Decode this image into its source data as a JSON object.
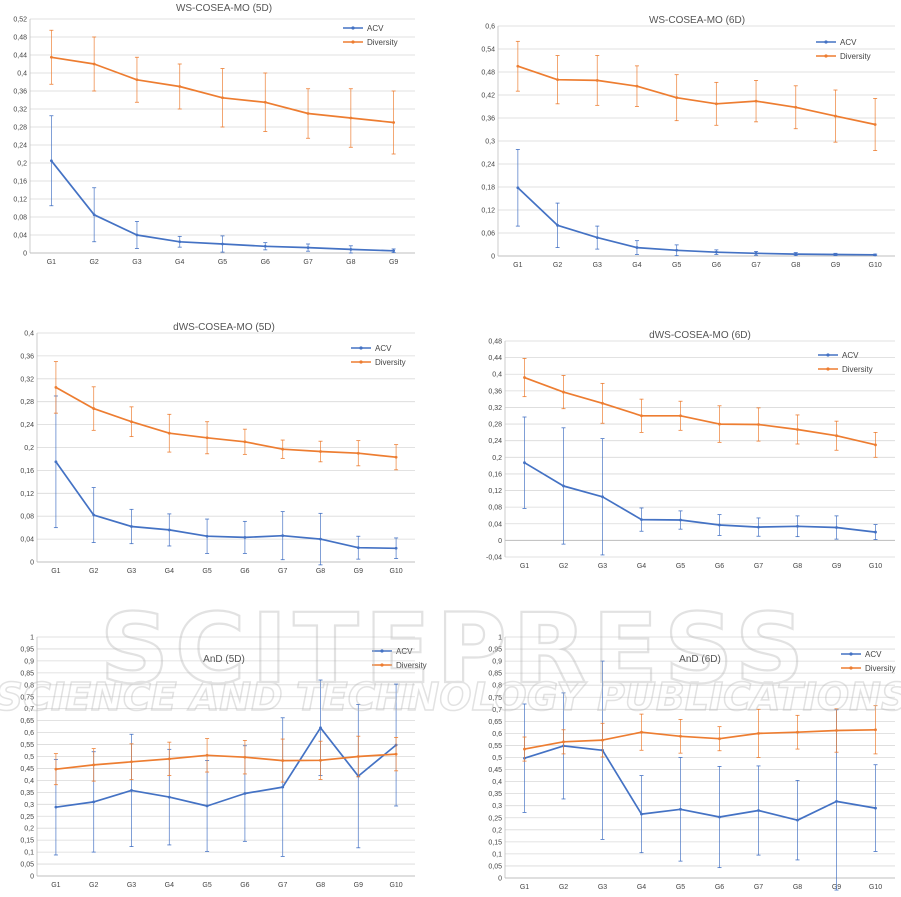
{
  "colors": {
    "acv": "#4472C4",
    "diversity": "#ED7D31",
    "grid": "#D9D9D9",
    "watermark": "#B4B4B4"
  },
  "watermark": {
    "line1": "SCITEPRESS",
    "line2": "SCIENCE AND TECHNOLOGY PUBLICATIONS"
  },
  "chart_data": [
    {
      "type": "line",
      "title": "WS-COSEA-MO (5D)",
      "categories": [
        "G1",
        "G2",
        "G3",
        "G4",
        "G5",
        "G6",
        "G7",
        "G8",
        "G9"
      ],
      "ylim": [
        0,
        0.52
      ],
      "yticks": [
        0,
        0.04,
        0.08,
        0.12,
        0.16,
        0.2,
        0.24,
        0.28,
        0.32,
        0.36,
        0.4,
        0.44,
        0.48,
        0.52
      ],
      "ytick_labels": [
        "0",
        "0,04",
        "0,08",
        "0,12",
        "0,16",
        "0,2",
        "0,24",
        "0,28",
        "0,32",
        "0,36",
        "0,4",
        "0,44",
        "0,48",
        "0,52"
      ],
      "series": [
        {
          "name": "ACV",
          "color": "#4472C4",
          "values": [
            0.205,
            0.085,
            0.04,
            0.025,
            0.02,
            0.015,
            0.012,
            0.008,
            0.005
          ],
          "errors": [
            0.1,
            0.06,
            0.03,
            0.012,
            0.018,
            0.008,
            0.008,
            0.008,
            0.004
          ]
        },
        {
          "name": "Diversity",
          "color": "#ED7D31",
          "values": [
            0.435,
            0.42,
            0.385,
            0.37,
            0.345,
            0.335,
            0.31,
            0.3,
            0.29
          ],
          "errors": [
            0.06,
            0.06,
            0.05,
            0.05,
            0.065,
            0.065,
            0.055,
            0.065,
            0.07
          ]
        }
      ],
      "legend": "top-right"
    },
    {
      "type": "line",
      "title": "WS-COSEA-MO (6D)",
      "categories": [
        "G1",
        "G2",
        "G3",
        "G4",
        "G5",
        "G6",
        "G7",
        "G8",
        "G9",
        "G10"
      ],
      "ylim": [
        0,
        0.6
      ],
      "yticks": [
        0,
        0.06,
        0.12,
        0.18,
        0.24,
        0.3,
        0.36,
        0.42,
        0.48,
        0.54,
        0.6
      ],
      "ytick_labels": [
        "0",
        "0,06",
        "0,12",
        "0,18",
        "0,24",
        "0,3",
        "0,36",
        "0,42",
        "0,48",
        "0,54",
        "0,6"
      ],
      "series": [
        {
          "name": "ACV",
          "color": "#4472C4",
          "values": [
            0.178,
            0.08,
            0.048,
            0.022,
            0.015,
            0.01,
            0.007,
            0.005,
            0.004,
            0.003
          ],
          "errors": [
            0.1,
            0.058,
            0.03,
            0.018,
            0.014,
            0.006,
            0.005,
            0.004,
            0.003,
            0.002
          ]
        },
        {
          "name": "Diversity",
          "color": "#ED7D31",
          "values": [
            0.495,
            0.46,
            0.458,
            0.443,
            0.413,
            0.397,
            0.404,
            0.388,
            0.365,
            0.343
          ],
          "errors": [
            0.065,
            0.063,
            0.065,
            0.053,
            0.06,
            0.056,
            0.054,
            0.056,
            0.068,
            0.068
          ]
        }
      ],
      "legend": "top-right"
    },
    {
      "type": "line",
      "title": "dWS-COSEA-MO (5D)",
      "categories": [
        "G1",
        "G2",
        "G3",
        "G4",
        "G5",
        "G6",
        "G7",
        "G8",
        "G9",
        "G10"
      ],
      "ylim": [
        0,
        0.4
      ],
      "yticks": [
        0,
        0.04,
        0.08,
        0.12,
        0.16,
        0.2,
        0.24,
        0.28,
        0.32,
        0.36,
        0.4
      ],
      "ytick_labels": [
        "0",
        "0,04",
        "0,08",
        "0,12",
        "0,16",
        "0,2",
        "0,24",
        "0,28",
        "0,32",
        "0,36",
        "0,4"
      ],
      "series": [
        {
          "name": "ACV",
          "color": "#4472C4",
          "values": [
            0.175,
            0.082,
            0.062,
            0.056,
            0.045,
            0.043,
            0.046,
            0.04,
            0.025,
            0.024
          ],
          "errors": [
            0.115,
            0.048,
            0.03,
            0.028,
            0.03,
            0.028,
            0.042,
            0.045,
            0.02,
            0.018
          ]
        },
        {
          "name": "Diversity",
          "color": "#ED7D31",
          "values": [
            0.305,
            0.268,
            0.245,
            0.225,
            0.217,
            0.21,
            0.197,
            0.193,
            0.19,
            0.183
          ],
          "errors": [
            0.045,
            0.038,
            0.026,
            0.033,
            0.028,
            0.022,
            0.016,
            0.018,
            0.022,
            0.022
          ]
        }
      ],
      "legend": "top-right"
    },
    {
      "type": "line",
      "title": "dWS-COSEA-MO (6D)",
      "categories": [
        "G1",
        "G2",
        "G3",
        "G4",
        "G5",
        "G6",
        "G7",
        "G8",
        "G9",
        "G10"
      ],
      "ylim": [
        -0.04,
        0.48
      ],
      "yticks": [
        -0.04,
        0,
        0.04,
        0.08,
        0.12,
        0.16,
        0.2,
        0.24,
        0.28,
        0.32,
        0.36,
        0.4,
        0.44,
        0.48
      ],
      "ytick_labels": [
        "-0,04",
        "0",
        "0,04",
        "0,08",
        "0,12",
        "0,16",
        "0,2",
        "0,24",
        "0,28",
        "0,32",
        "0,36",
        "0,4",
        "0,44",
        "0,48"
      ],
      "series": [
        {
          "name": "ACV",
          "color": "#4472C4",
          "values": [
            0.187,
            0.131,
            0.105,
            0.05,
            0.049,
            0.037,
            0.032,
            0.034,
            0.031,
            0.02
          ],
          "errors": [
            0.11,
            0.14,
            0.14,
            0.028,
            0.022,
            0.025,
            0.022,
            0.025,
            0.028,
            0.018
          ]
        },
        {
          "name": "Diversity",
          "color": "#ED7D31",
          "values": [
            0.392,
            0.357,
            0.33,
            0.3,
            0.3,
            0.28,
            0.279,
            0.267,
            0.252,
            0.23
          ],
          "errors": [
            0.046,
            0.04,
            0.048,
            0.04,
            0.035,
            0.044,
            0.04,
            0.035,
            0.035,
            0.03
          ]
        }
      ],
      "legend": "top-right"
    },
    {
      "type": "line",
      "title": "AnD (5D)",
      "categories": [
        "G1",
        "G2",
        "G3",
        "G4",
        "G5",
        "G6",
        "G7",
        "G8",
        "G9",
        "G10"
      ],
      "ylim": [
        0,
        1
      ],
      "yticks": [
        0,
        0.05,
        0.1,
        0.15,
        0.2,
        0.25,
        0.3,
        0.35,
        0.4,
        0.45,
        0.5,
        0.55,
        0.6,
        0.65,
        0.7,
        0.75,
        0.8,
        0.85,
        0.9,
        0.95,
        1
      ],
      "ytick_labels": [
        "0",
        "0,05",
        "0,1",
        "0,15",
        "0,2",
        "0,25",
        "0,3",
        "0,35",
        "0,4",
        "0,45",
        "0,5",
        "0,55",
        "0,6",
        "0,65",
        "0,7",
        "0,75",
        "0,8",
        "0,85",
        "0,9",
        "0,95",
        "1"
      ],
      "series": [
        {
          "name": "ACV",
          "color": "#4472C4",
          "values": [
            0.288,
            0.31,
            0.358,
            0.33,
            0.293,
            0.345,
            0.372,
            0.62,
            0.418,
            0.548
          ],
          "errors": [
            0.2,
            0.21,
            0.235,
            0.2,
            0.19,
            0.2,
            0.29,
            0.2,
            0.3,
            0.255
          ]
        },
        {
          "name": "Diversity",
          "color": "#ED7D31",
          "values": [
            0.447,
            0.465,
            0.478,
            0.49,
            0.505,
            0.497,
            0.483,
            0.484,
            0.5,
            0.51
          ],
          "errors": [
            0.065,
            0.068,
            0.075,
            0.07,
            0.07,
            0.07,
            0.09,
            0.08,
            0.085,
            0.07
          ]
        }
      ],
      "legend": "top-right"
    },
    {
      "type": "line",
      "title": "AnD (6D)",
      "categories": [
        "G1",
        "G2",
        "G3",
        "G4",
        "G5",
        "G6",
        "G7",
        "G8",
        "G9",
        "G10"
      ],
      "ylim": [
        0,
        1
      ],
      "yticks": [
        0,
        0.05,
        0.1,
        0.15,
        0.2,
        0.25,
        0.3,
        0.35,
        0.4,
        0.45,
        0.5,
        0.55,
        0.6,
        0.65,
        0.7,
        0.75,
        0.8,
        0.85,
        0.9,
        0.95,
        1
      ],
      "ytick_labels": [
        "0",
        "0,05",
        "0,1",
        "0,15",
        "0,2",
        "0,25",
        "0,3",
        "0,35",
        "0,4",
        "0,45",
        "0,5",
        "0,55",
        "0,6",
        "0,65",
        "0,7",
        "0,75",
        "0,8",
        "0,85",
        "0,9",
        "0,95",
        "1"
      ],
      "series": [
        {
          "name": "ACV",
          "color": "#4472C4",
          "values": [
            0.497,
            0.548,
            0.53,
            0.265,
            0.285,
            0.253,
            0.28,
            0.24,
            0.318,
            0.29
          ],
          "errors": [
            0.225,
            0.22,
            0.37,
            0.16,
            0.215,
            0.21,
            0.185,
            0.165,
            0.38,
            0.18
          ]
        },
        {
          "name": "Diversity",
          "color": "#ED7D31",
          "values": [
            0.535,
            0.565,
            0.572,
            0.605,
            0.588,
            0.578,
            0.6,
            0.605,
            0.612,
            0.615
          ],
          "errors": [
            0.05,
            0.05,
            0.07,
            0.075,
            0.07,
            0.05,
            0.1,
            0.07,
            0.09,
            0.1
          ]
        }
      ],
      "legend": "top-right"
    }
  ]
}
